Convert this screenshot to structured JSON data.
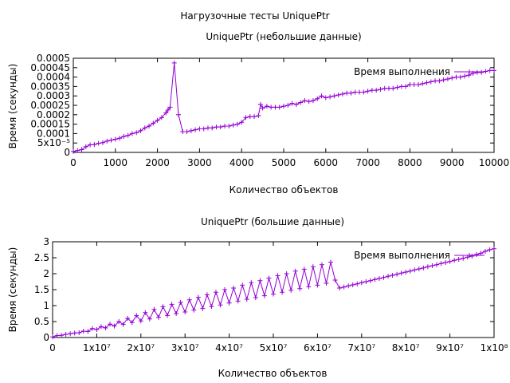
{
  "page_title": "Нагрузочные тесты UniquePtr",
  "colors": {
    "series": "#9400d3",
    "axis": "#000000",
    "background": "#ffffff"
  },
  "chart_data": [
    {
      "type": "line",
      "title": "UniquePtr (небольшие данные)",
      "xlabel": "Количество объектов",
      "ylabel": "Время (секунды)",
      "xlim": [
        0,
        10000
      ],
      "ylim": [
        0,
        0.0005
      ],
      "grid": false,
      "legend_position": "top-right",
      "x_ticks": [
        0,
        1000,
        2000,
        3000,
        4000,
        5000,
        6000,
        7000,
        8000,
        9000,
        10000
      ],
      "x_tick_labels": [
        "0",
        "1000",
        "2000",
        "3000",
        "4000",
        "5000",
        "6000",
        "7000",
        "8000",
        "9000",
        "10000"
      ],
      "y_ticks": [
        0,
        5e-05,
        0.0001,
        0.00015,
        0.0002,
        0.00025,
        0.0003,
        0.00035,
        0.0004,
        0.00045,
        0.0005
      ],
      "y_tick_labels": [
        "0",
        "5x10⁻⁵",
        "0.0001",
        "0.00015",
        "0.0002",
        "0.00025",
        "0.0003",
        "0.00035",
        "0.0004",
        "0.00045",
        "0.0005"
      ],
      "series": [
        {
          "name": "Время выполнения",
          "color": "#9400d3",
          "x": [
            0,
            100,
            200,
            300,
            400,
            500,
            600,
            700,
            800,
            900,
            1000,
            1100,
            1200,
            1300,
            1400,
            1500,
            1600,
            1700,
            1800,
            1900,
            2000,
            2100,
            2200,
            2250,
            2300,
            2400,
            2500,
            2600,
            2700,
            2800,
            2900,
            3000,
            3100,
            3200,
            3300,
            3400,
            3500,
            3600,
            3700,
            3800,
            3900,
            4000,
            4100,
            4200,
            4300,
            4400,
            4450,
            4500,
            4600,
            4700,
            4800,
            4900,
            5000,
            5100,
            5200,
            5300,
            5400,
            5500,
            5600,
            5700,
            5800,
            5900,
            6000,
            6100,
            6200,
            6300,
            6400,
            6500,
            6600,
            6700,
            6800,
            6900,
            7000,
            7100,
            7200,
            7300,
            7400,
            7500,
            7600,
            7700,
            7800,
            7900,
            8000,
            8100,
            8200,
            8300,
            8400,
            8500,
            8600,
            8700,
            8800,
            8900,
            9000,
            9100,
            9200,
            9300,
            9400,
            9500,
            9600,
            9700,
            9800,
            9900,
            10000
          ],
          "y": [
            5e-06,
            1e-05,
            1.5e-05,
            3e-05,
            4e-05,
            4.2e-05,
            4.8e-05,
            5.2e-05,
            6e-05,
            6.5e-05,
            7e-05,
            7.5e-05,
            8.5e-05,
            9e-05,
            0.0001,
            0.000105,
            0.000115,
            0.00013,
            0.00014,
            0.000155,
            0.00017,
            0.000185,
            0.00021,
            0.000225,
            0.00024,
            0.000475,
            0.0002,
            0.00011,
            0.00011,
            0.000115,
            0.00012,
            0.000125,
            0.000125,
            0.00013,
            0.00013,
            0.000135,
            0.000135,
            0.00014,
            0.00014,
            0.000145,
            0.00015,
            0.00016,
            0.000185,
            0.00019,
            0.00019,
            0.000195,
            0.000255,
            0.000235,
            0.000245,
            0.00024,
            0.00024,
            0.00024,
            0.000245,
            0.00025,
            0.00026,
            0.000255,
            0.000265,
            0.000275,
            0.00027,
            0.000275,
            0.000285,
            0.0003,
            0.00029,
            0.000295,
            0.0003,
            0.000305,
            0.00031,
            0.000315,
            0.000315,
            0.00032,
            0.00032,
            0.00032,
            0.000325,
            0.00033,
            0.00033,
            0.000335,
            0.00034,
            0.00034,
            0.00034,
            0.000345,
            0.00035,
            0.00035,
            0.00036,
            0.00036,
            0.00036,
            0.000365,
            0.00037,
            0.000375,
            0.00038,
            0.00038,
            0.000385,
            0.00039,
            0.000395,
            0.0004,
            0.0004,
            0.000405,
            0.00041,
            0.00042,
            0.000425,
            0.000425,
            0.00043,
            0.000435,
            0.000435
          ]
        }
      ]
    },
    {
      "type": "line",
      "title": "UniquePtr (большие данные)",
      "xlabel": "Количество объектов",
      "ylabel": "Время (секунды)",
      "xlim": [
        0,
        100000000
      ],
      "ylim": [
        0,
        3
      ],
      "grid": false,
      "legend_position": "top-right",
      "x_ticks": [
        0,
        10000000,
        20000000,
        30000000,
        40000000,
        50000000,
        60000000,
        70000000,
        80000000,
        90000000,
        100000000
      ],
      "x_tick_labels": [
        "0",
        "1x10⁷",
        "2x10⁷",
        "3x10⁷",
        "4x10⁷",
        "5x10⁷",
        "6x10⁷",
        "7x10⁷",
        "8x10⁷",
        "9x10⁷",
        "1x10⁸"
      ],
      "y_ticks": [
        0,
        0.5,
        1,
        1.5,
        2,
        2.5,
        3
      ],
      "y_tick_labels": [
        "0",
        "0.5",
        "1",
        "1.5",
        "2",
        "2.5",
        "3"
      ],
      "series": [
        {
          "name": "Время выполнения",
          "color": "#9400d3",
          "x": [
            0,
            1000000,
            2000000,
            3000000,
            4000000,
            5000000,
            6000000,
            7000000,
            8000000,
            9000000,
            10000000,
            11000000,
            12000000,
            13000000,
            14000000,
            15000000,
            16000000,
            17000000,
            18000000,
            19000000,
            20000000,
            21000000,
            22000000,
            23000000,
            24000000,
            25000000,
            26000000,
            27000000,
            28000000,
            29000000,
            30000000,
            31000000,
            32000000,
            33000000,
            34000000,
            35000000,
            36000000,
            37000000,
            38000000,
            39000000,
            40000000,
            41000000,
            42000000,
            43000000,
            44000000,
            45000000,
            46000000,
            47000000,
            48000000,
            49000000,
            50000000,
            51000000,
            52000000,
            53000000,
            54000000,
            55000000,
            56000000,
            57000000,
            58000000,
            59000000,
            60000000,
            61000000,
            62000000,
            63000000,
            64000000,
            65000000,
            66000000,
            67000000,
            68000000,
            69000000,
            70000000,
            71000000,
            72000000,
            73000000,
            74000000,
            75000000,
            76000000,
            77000000,
            78000000,
            79000000,
            80000000,
            81000000,
            82000000,
            83000000,
            84000000,
            85000000,
            86000000,
            87000000,
            88000000,
            89000000,
            90000000,
            91000000,
            92000000,
            93000000,
            94000000,
            95000000,
            96000000,
            97000000,
            98000000,
            99000000,
            100000000
          ],
          "y": [
            0.02,
            0.06,
            0.07,
            0.1,
            0.12,
            0.14,
            0.15,
            0.2,
            0.19,
            0.28,
            0.25,
            0.34,
            0.3,
            0.42,
            0.36,
            0.5,
            0.41,
            0.6,
            0.47,
            0.69,
            0.52,
            0.78,
            0.58,
            0.88,
            0.63,
            0.97,
            0.69,
            1.04,
            0.75,
            1.1,
            0.8,
            1.18,
            0.86,
            1.26,
            0.91,
            1.34,
            0.97,
            1.42,
            1.02,
            1.5,
            1.08,
            1.55,
            1.14,
            1.64,
            1.2,
            1.72,
            1.25,
            1.78,
            1.31,
            1.86,
            1.36,
            1.94,
            1.42,
            2.0,
            1.48,
            2.08,
            1.53,
            2.14,
            1.59,
            2.22,
            1.64,
            2.28,
            1.7,
            2.36,
            1.8,
            1.55,
            1.58,
            1.62,
            1.65,
            1.68,
            1.72,
            1.75,
            1.78,
            1.82,
            1.85,
            1.88,
            1.92,
            1.95,
            1.98,
            2.02,
            2.05,
            2.08,
            2.12,
            2.15,
            2.18,
            2.22,
            2.25,
            2.28,
            2.32,
            2.35,
            2.38,
            2.42,
            2.45,
            2.48,
            2.52,
            2.55,
            2.6,
            2.64,
            2.7,
            2.75,
            2.78
          ]
        }
      ]
    }
  ]
}
